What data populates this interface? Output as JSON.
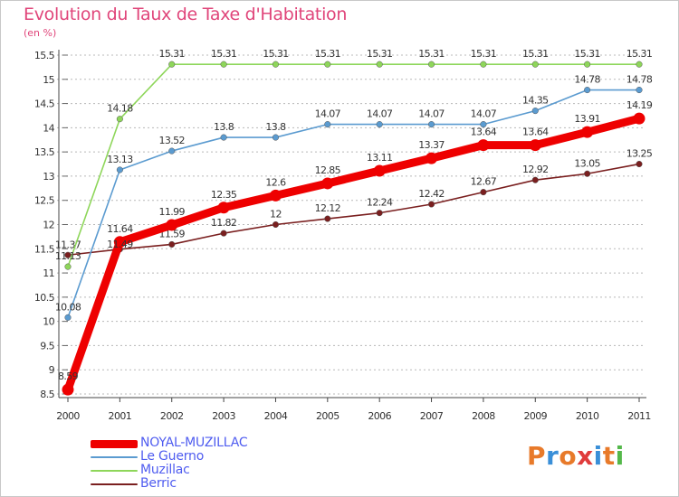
{
  "header": {
    "title": "Evolution du Taux de Taxe d'Habitation",
    "subtitle": "(en %)"
  },
  "logo": {
    "text": "Proxiti",
    "colors": [
      "#e87a2a",
      "#3a8fd8",
      "#e87a2a",
      "#e03c3c",
      "#3a8fd8",
      "#e87a2a",
      "#54b84a"
    ]
  },
  "chart_data": {
    "type": "line",
    "title": "Evolution du Taux de Taxe d'Habitation",
    "subtitle": "(en %)",
    "xlabel": "",
    "ylabel": "",
    "x": [
      "2000",
      "2001",
      "2002",
      "2003",
      "2004",
      "2005",
      "2006",
      "2007",
      "2008",
      "2009",
      "2010",
      "2011"
    ],
    "ylim": [
      8.5,
      15.5
    ],
    "yticks": [
      "8.5",
      "9",
      "9.5",
      "10",
      "10.5",
      "11",
      "11.5",
      "12",
      "12.5",
      "13",
      "13.5",
      "14",
      "14.5",
      "15",
      "15.5"
    ],
    "grid": "horizontal dashed",
    "legend": "bottom-left",
    "series": [
      {
        "name": "Berric",
        "color": "#7a1f1f",
        "weight": "thin",
        "values": [
          11.37,
          11.49,
          11.59,
          11.82,
          12,
          12.12,
          12.24,
          12.42,
          12.67,
          12.92,
          13.05,
          13.25
        ],
        "labels": [
          "11.37",
          "",
          "11.59",
          "11.82",
          "12",
          "12.12",
          "12.24",
          "12.42",
          "12.67",
          "12.92",
          "13.05",
          "13.25"
        ]
      },
      {
        "name": "Muzillac",
        "color": "#8ed65a",
        "weight": "thin",
        "values": [
          11.13,
          14.18,
          15.31,
          15.31,
          15.31,
          15.31,
          15.31,
          15.31,
          15.31,
          15.31,
          15.31,
          15.31
        ],
        "labels": [
          "11.13",
          "14.18",
          "15.31",
          "15.31",
          "15.31",
          "15.31",
          "15.31",
          "15.31",
          "15.31",
          "15.31",
          "15.31",
          "15.31"
        ]
      },
      {
        "name": "Le Guerno",
        "color": "#5b9bd0",
        "weight": "thin",
        "values": [
          10.08,
          13.13,
          13.52,
          13.8,
          13.8,
          14.07,
          14.07,
          14.07,
          14.07,
          14.35,
          14.78,
          14.78
        ],
        "labels": [
          "10.08",
          "13.13",
          "13.52",
          "13.8",
          "13.8",
          "14.07",
          "14.07",
          "14.07",
          "14.07",
          "14.35",
          "14.78",
          "14.78"
        ]
      },
      {
        "name": "NOYAL-MUZILLAC",
        "color": "#ee0000",
        "weight": "thick",
        "values": [
          8.59,
          11.64,
          11.99,
          12.35,
          12.6,
          12.85,
          13.11,
          13.37,
          13.64,
          13.64,
          13.91,
          14.19
        ],
        "labels": [
          "8.59",
          "11.64",
          "11.99",
          "12.35",
          "12.6",
          "12.85",
          "13.11",
          "13.37",
          "13.64",
          "13.64",
          "13.91",
          "14.19"
        ]
      }
    ],
    "extra_labels": [
      "11.49"
    ]
  },
  "legend": {
    "items": [
      {
        "label": "NOYAL-MUZILLAC",
        "color": "#ee0000",
        "weight": "thick"
      },
      {
        "label": "Le Guerno",
        "color": "#5b9bd0",
        "weight": "thin"
      },
      {
        "label": "Muzillac",
        "color": "#8ed65a",
        "weight": "thin"
      },
      {
        "label": "Berric",
        "color": "#7a1f1f",
        "weight": "thin"
      }
    ]
  }
}
